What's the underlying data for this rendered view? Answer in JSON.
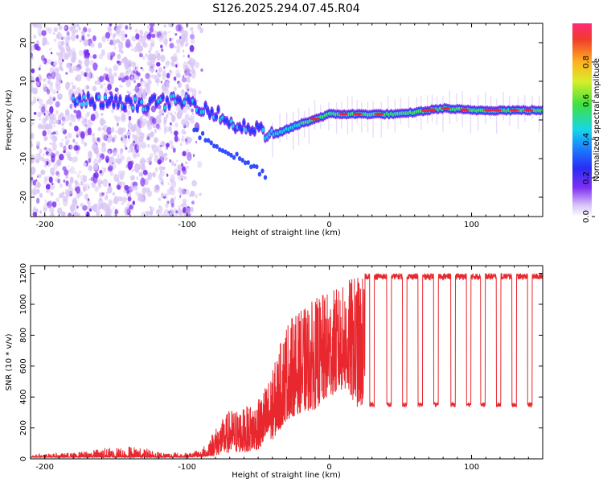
{
  "chart_data": [
    {
      "type": "heatmap",
      "title": "S126.2025.294.07.45.R04",
      "xlabel": "Height of straight line (km)",
      "ylabel": "Frequency (Hz)",
      "xlim": [
        -210,
        150
      ],
      "ylim": [
        -25,
        25
      ],
      "xticks": [
        -200,
        -100,
        0,
        100
      ],
      "yticks": [
        -20,
        -10,
        0,
        10,
        20
      ],
      "colorbar": {
        "label": "Normalized spectral amplitude",
        "range": [
          0,
          1
        ],
        "ticks": [
          0.0,
          0.2,
          0.4,
          0.6,
          0.8
        ]
      },
      "colors": {
        "low": "#d9c6f5",
        "mid_low": "#7a2cf0",
        "mid": "#1f3cff",
        "cyan": "#19d6e6",
        "green": "#4be14b",
        "high": "#e8283c"
      },
      "ridge": {
        "description_series": "dominant frequency vs height",
        "x": [
          -210,
          -170,
          -140,
          -100,
          -80,
          -70,
          -55,
          -40,
          -20,
          0,
          20,
          50,
          80,
          100,
          150
        ],
        "y": [
          4,
          5,
          4,
          5,
          2,
          -1,
          -2,
          -4,
          -1,
          1.5,
          1.5,
          1.5,
          3,
          2.5,
          2.5
        ]
      }
    },
    {
      "type": "line",
      "title": "",
      "xlabel": "Height of straight line (km)",
      "ylabel": "SNR (10 * v/v)",
      "xlim": [
        -210,
        150
      ],
      "ylim": [
        0,
        1250
      ],
      "xticks": [
        -200,
        -100,
        0,
        100
      ],
      "yticks": [
        0,
        200,
        400,
        600,
        800,
        1000,
        1200
      ],
      "series": [
        {
          "name": "SNR",
          "color": "#e8282e",
          "envelope_x": [
            -210,
            -180,
            -160,
            -140,
            -120,
            -100,
            -90,
            -80,
            -70,
            -60,
            -50,
            -40,
            -30,
            -20,
            -10,
            0,
            10,
            15,
            20,
            25,
            30,
            150
          ],
          "envelope_low": [
            10,
            10,
            10,
            10,
            10,
            10,
            15,
            20,
            40,
            40,
            60,
            120,
            250,
            300,
            320,
            400,
            450,
            400,
            330,
            340,
            340,
            340
          ],
          "envelope_high": [
            30,
            40,
            70,
            90,
            50,
            40,
            60,
            200,
            320,
            330,
            380,
            570,
            900,
            960,
            1040,
            1090,
            1120,
            1180,
            1190,
            1200,
            1200,
            1200
          ],
          "drop_centers": [
            30,
            42,
            53,
            64,
            75,
            87,
            98,
            108,
            119,
            130,
            141
          ],
          "drop_level": 350,
          "plateau_level": 1180
        }
      ]
    }
  ]
}
